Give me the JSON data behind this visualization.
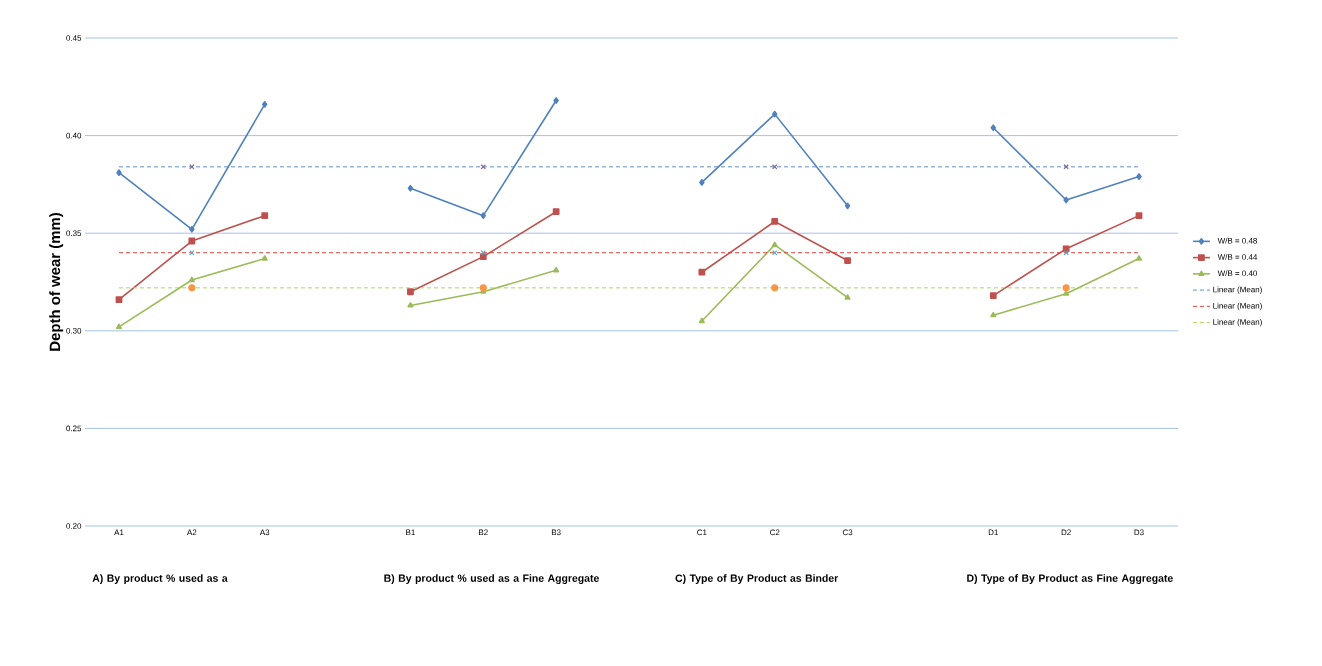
{
  "chart_data": {
    "type": "line",
    "ylabel": "Depth of wear (mm)",
    "categories": [
      "A1",
      "A2",
      "A3",
      null,
      "B1",
      "B2",
      "B3",
      null,
      "C1",
      "C2",
      "C3",
      null,
      "D1",
      "D2",
      "D3"
    ],
    "series": [
      {
        "name": "W/B = 0.48",
        "color": "#4f81bd",
        "marker": "diamond",
        "values": [
          0.381,
          0.352,
          0.416,
          null,
          0.373,
          0.359,
          0.418,
          null,
          0.376,
          0.411,
          0.364,
          null,
          0.404,
          0.367,
          0.379
        ]
      },
      {
        "name": "W/B = 0.44",
        "color": "#c0504d",
        "marker": "square",
        "values": [
          0.316,
          0.346,
          0.359,
          null,
          0.32,
          0.338,
          0.361,
          null,
          0.33,
          0.356,
          0.336,
          null,
          0.318,
          0.342,
          0.359
        ]
      },
      {
        "name": "W/B = 0.40",
        "color": "#9bbb59",
        "marker": "triangle",
        "values": [
          0.302,
          0.326,
          0.337,
          null,
          0.313,
          0.32,
          0.331,
          null,
          0.305,
          0.344,
          0.317,
          null,
          0.308,
          0.319,
          0.337
        ]
      },
      {
        "name": "Linear (Mean)",
        "type": "line",
        "line_style": "dashed",
        "marker": "none",
        "color": "#4f81bd",
        "x": [
          "A1",
          "D3"
        ],
        "values": [
          0.384,
          0.384
        ]
      },
      {
        "name": "Linear (Mean)",
        "type": "line",
        "line_style": "dashed",
        "marker": "none",
        "color": "#e0302a",
        "x": [
          "A1",
          "D3"
        ],
        "values": [
          0.34,
          0.34
        ]
      },
      {
        "name": "Linear (Mean)",
        "type": "line",
        "line_style": "dashed",
        "marker": "none",
        "color": "#9bd44a",
        "x": [
          "A1",
          "D3"
        ],
        "values": [
          0.322,
          0.322
        ]
      },
      {
        "type": "scatter",
        "marker": "cross",
        "color": "#8064a2",
        "x": [
          "A2",
          "B2",
          "C2",
          "D2"
        ],
        "values": [
          0.384,
          0.384,
          0.384,
          0.384
        ]
      },
      {
        "type": "scatter",
        "marker": "cross",
        "color": "#4bacc6",
        "x": [
          "A2",
          "B2",
          "C2",
          "D2"
        ],
        "values": [
          0.34,
          0.34,
          0.34,
          0.34
        ]
      },
      {
        "type": "scatter",
        "marker": "circle",
        "color": "#f79646",
        "x": [
          "A2",
          "B2",
          "C2",
          "D2"
        ],
        "values": [
          0.322,
          0.322,
          0.322,
          0.322
        ]
      }
    ],
    "ylim": [
      0.2,
      0.45
    ],
    "yticks": [
      {
        "value": 0.2,
        "label": "0.20"
      },
      {
        "value": 0.25,
        "label": "0.25"
      },
      {
        "value": 0.3,
        "label": "0.30"
      },
      {
        "value": 0.35,
        "label": "0.35"
      },
      {
        "value": 0.4,
        "label": "0.40"
      },
      {
        "value": 0.45,
        "label": "0.45"
      }
    ],
    "grid": "y",
    "legend": "right",
    "annotations": [
      "A) By product % used as a",
      "B) By product % used as a Fine Aggregate",
      "C) Type of By Product as Binder",
      "D) Type of By Product as Fine Aggregate"
    ]
  }
}
